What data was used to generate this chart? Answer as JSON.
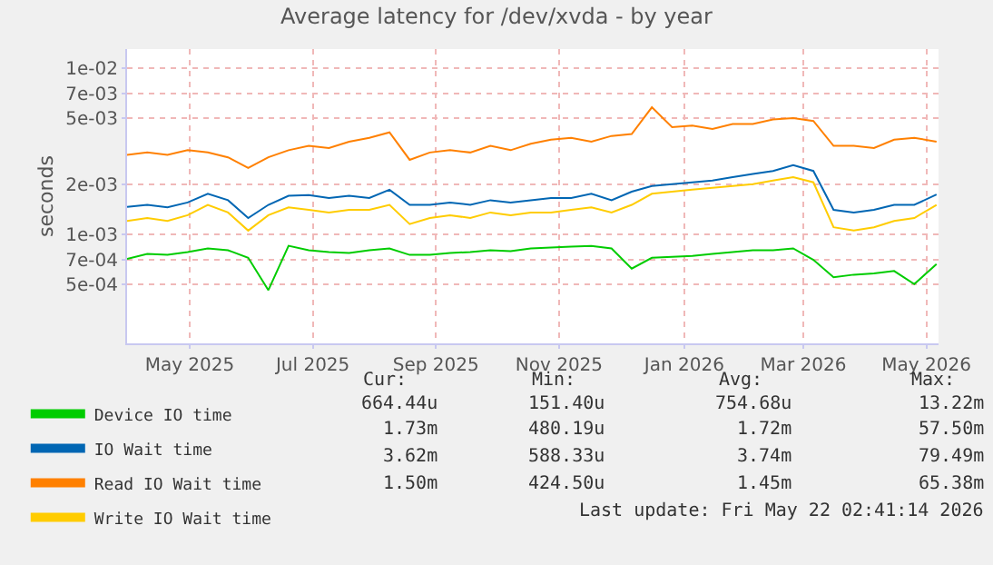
{
  "chart_data": {
    "type": "line",
    "title": "Average latency for /dev/xvda - by year",
    "ylabel": "seconds",
    "log": true,
    "grid": true,
    "legend": "bottom left",
    "marker": "none",
    "line_style": "solid",
    "x": [
      "2025-04-15",
      "2025-04-25",
      "2025-05-05",
      "2025-05-15",
      "2025-05-25",
      "2025-06-04",
      "2025-06-14",
      "2025-06-24",
      "2025-07-04",
      "2025-07-14",
      "2025-07-24",
      "2025-08-03",
      "2025-08-13",
      "2025-08-23",
      "2025-09-02",
      "2025-09-12",
      "2025-09-22",
      "2025-10-02",
      "2025-10-12",
      "2025-10-22",
      "2025-11-01",
      "2025-11-11",
      "2025-11-21",
      "2025-12-01",
      "2025-12-11",
      "2025-12-21",
      "2025-12-31",
      "2026-01-10",
      "2026-01-20",
      "2026-01-30",
      "2026-02-09",
      "2026-02-19",
      "2026-03-01",
      "2026-03-11",
      "2026-03-21",
      "2026-03-31",
      "2026-04-10",
      "2026-04-20",
      "2026-04-30",
      "2026-05-10",
      "2026-05-21"
    ],
    "xlim": [
      "2025-04-15",
      "2026-05-22"
    ],
    "xticks": [
      {
        "value": "2025-05-16",
        "label": "May 2025"
      },
      {
        "value": "2025-07-16",
        "label": "Jul 2025"
      },
      {
        "value": "2025-09-15",
        "label": "Sep 2025"
      },
      {
        "value": "2025-11-15",
        "label": "Nov 2025"
      },
      {
        "value": "2026-01-16",
        "label": "Jan 2026"
      },
      {
        "value": "2026-03-16",
        "label": "Mar 2026"
      },
      {
        "value": "2026-05-16",
        "label": "May 2026"
      }
    ],
    "ylim": [
      0.00022,
      0.013
    ],
    "yticks": [
      {
        "value": 0.0005,
        "label": "5e-04"
      },
      {
        "value": 0.0007,
        "label": "7e-04"
      },
      {
        "value": 0.001,
        "label": "1e-03"
      },
      {
        "value": 0.002,
        "label": "2e-03"
      },
      {
        "value": 0.005,
        "label": "5e-03"
      },
      {
        "value": 0.007,
        "label": "7e-03"
      },
      {
        "value": 0.01,
        "label": "1e-02"
      }
    ],
    "series": [
      {
        "name": "Device IO time",
        "color": "#00cc00",
        "values": [
          0.00071,
          0.00076,
          0.00075,
          0.00078,
          0.00082,
          0.0008,
          0.00072,
          0.00046,
          0.00085,
          0.0008,
          0.00078,
          0.00077,
          0.0008,
          0.00082,
          0.00075,
          0.00075,
          0.00077,
          0.00078,
          0.0008,
          0.00079,
          0.00082,
          0.00083,
          0.00084,
          0.00085,
          0.00082,
          0.00062,
          0.00072,
          0.00073,
          0.00074,
          0.00076,
          0.00078,
          0.0008,
          0.0008,
          0.00082,
          0.0007,
          0.00055,
          0.00057,
          0.00058,
          0.0006,
          0.0005,
          0.00066
        ]
      },
      {
        "name": "IO Wait time",
        "color": "#0066b3",
        "values": [
          0.00146,
          0.0015,
          0.00145,
          0.00155,
          0.00175,
          0.0016,
          0.00125,
          0.0015,
          0.0017,
          0.00172,
          0.00165,
          0.0017,
          0.00165,
          0.00185,
          0.0015,
          0.0015,
          0.00155,
          0.0015,
          0.0016,
          0.00155,
          0.0016,
          0.00165,
          0.00165,
          0.00175,
          0.0016,
          0.0018,
          0.00195,
          0.002,
          0.00205,
          0.0021,
          0.0022,
          0.0023,
          0.0024,
          0.0026,
          0.0024,
          0.0014,
          0.00135,
          0.0014,
          0.0015,
          0.0015,
          0.00173
        ]
      },
      {
        "name": "Read IO Wait time",
        "color": "#ff8000",
        "values": [
          0.003,
          0.0031,
          0.003,
          0.0032,
          0.0031,
          0.0029,
          0.0025,
          0.0029,
          0.0032,
          0.0034,
          0.0033,
          0.0036,
          0.0038,
          0.0041,
          0.0028,
          0.0031,
          0.0032,
          0.0031,
          0.0034,
          0.0032,
          0.0035,
          0.0037,
          0.0038,
          0.0036,
          0.0039,
          0.004,
          0.0058,
          0.0044,
          0.0045,
          0.0043,
          0.0046,
          0.0046,
          0.0049,
          0.005,
          0.0048,
          0.0034,
          0.0034,
          0.0033,
          0.0037,
          0.0038,
          0.0036
        ]
      },
      {
        "name": "Write IO Wait time",
        "color": "#ffcc00",
        "values": [
          0.0012,
          0.00125,
          0.0012,
          0.0013,
          0.0015,
          0.00135,
          0.00105,
          0.0013,
          0.00145,
          0.0014,
          0.00135,
          0.0014,
          0.0014,
          0.0015,
          0.00115,
          0.00125,
          0.0013,
          0.00125,
          0.00135,
          0.0013,
          0.00135,
          0.00135,
          0.0014,
          0.00145,
          0.00135,
          0.0015,
          0.00175,
          0.0018,
          0.00185,
          0.0019,
          0.00195,
          0.002,
          0.0021,
          0.0022,
          0.00205,
          0.0011,
          0.00105,
          0.0011,
          0.0012,
          0.00125,
          0.0015
        ]
      }
    ],
    "annotations": [
      "Cur:",
      "Min:",
      "Avg:",
      "Max:",
      "664.44u",
      "151.40u",
      "754.68u",
      "13.22m",
      "1.73m",
      "480.19u",
      "1.72m",
      "57.50m",
      "3.62m",
      "588.33u",
      "3.74m",
      "79.49m",
      "1.50m",
      "424.50u",
      "1.45m",
      "65.38m",
      "Last update: Fri May 22 02:41:14 2026"
    ]
  }
}
